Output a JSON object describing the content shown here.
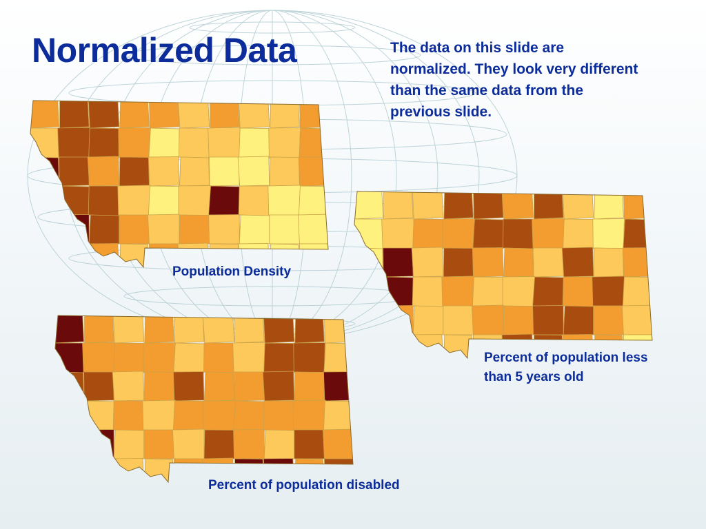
{
  "slide": {
    "title": "Normalized Data",
    "note": "The data on this slide are normalized.  They look very different than the same data from the previous slide."
  },
  "maps": [
    {
      "caption": "Population Density"
    },
    {
      "caption": "Percent of population less than 5 years old"
    },
    {
      "caption": "Percent of population disabled"
    }
  ],
  "colors": {
    "text": "#0b2c9a",
    "class_1": "#fff17d",
    "class_2": "#fcc95a",
    "class_3": "#f39c30",
    "class_4": "#a94c10",
    "class_5": "#6a0a0a",
    "county_border": "#c9a24a"
  }
}
